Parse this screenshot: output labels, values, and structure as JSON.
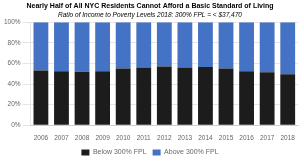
{
  "chart_data": {
    "type": "bar",
    "title": "Nearly Half of All NYC Residents Cannot Afford a Basic Standard of Living",
    "subtitle": "Ratio of Income to Poverty Levels 2018: 300% FPL = < $37,470",
    "categories": [
      "2006",
      "2007",
      "2008",
      "2009",
      "2010",
      "2011",
      "2012",
      "2013",
      "2014",
      "2015",
      "2016",
      "2017",
      "2018"
    ],
    "series": [
      {
        "name": "Below 300% FPL",
        "color": "#1c1c1c",
        "values": [
          53,
          52.5,
          52,
          52.5,
          55,
          56,
          57,
          56,
          56.5,
          55,
          52.5,
          51.5,
          49.5
        ]
      },
      {
        "name": "Above 300% FPL",
        "color": "#4472c4",
        "values": [
          47,
          47.5,
          48,
          47.5,
          45,
          44,
          43,
          44,
          43.5,
          45,
          47.5,
          48.5,
          50.5
        ]
      }
    ],
    "stacked": true,
    "ylim": [
      0,
      100
    ],
    "yticks": [
      {
        "value": 0,
        "label": "0%"
      },
      {
        "value": 20,
        "label": "20%"
      },
      {
        "value": 40,
        "label": "40%"
      },
      {
        "value": 60,
        "label": "60%"
      },
      {
        "value": 80,
        "label": "80%"
      },
      {
        "value": 100,
        "label": "100%"
      }
    ],
    "grid": true,
    "legend": "bottom"
  }
}
